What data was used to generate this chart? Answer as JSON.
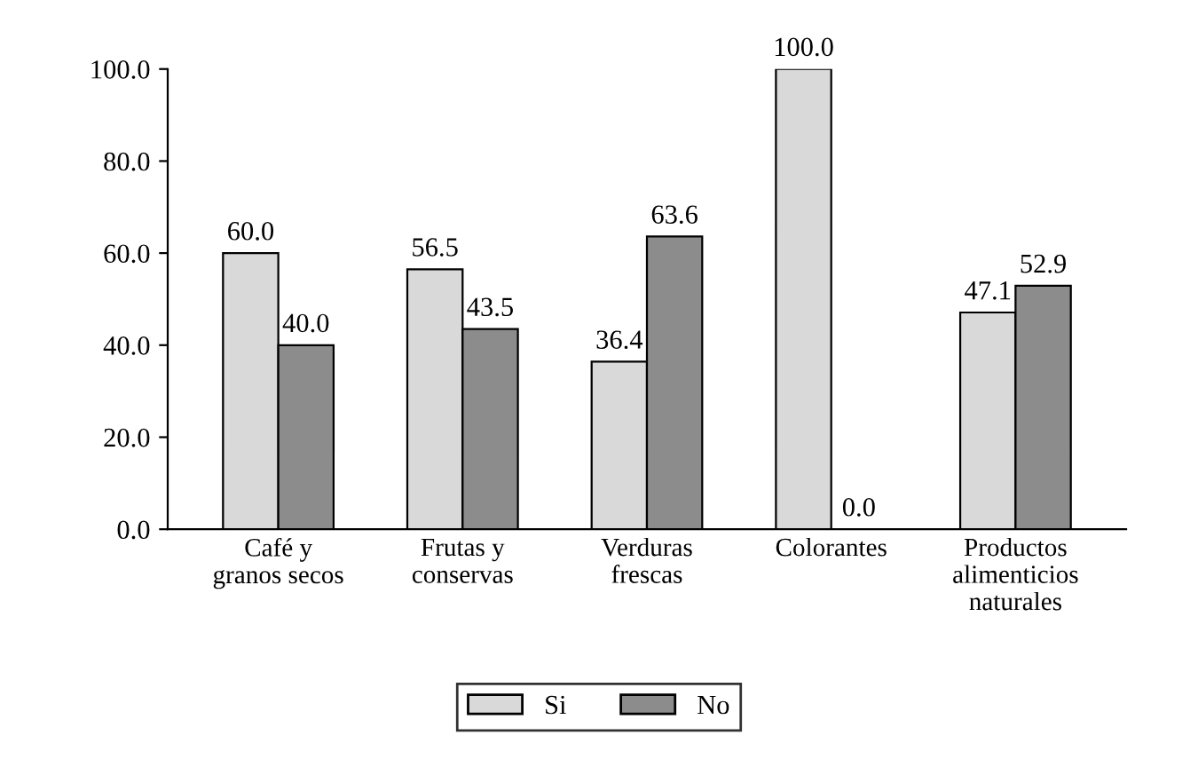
{
  "chart_data": {
    "type": "bar",
    "categories": [
      "Café y\ngranos secos",
      "Frutas y\nconservas",
      "Verduras\nfrescas",
      "Colorantes",
      "Productos\nalimenticios\nnaturales"
    ],
    "series": [
      {
        "name": "Si",
        "color": "#d9d9d9",
        "values": [
          60.0,
          56.5,
          36.4,
          100.0,
          47.1
        ],
        "value_labels": [
          "60.0",
          "56.5",
          "36.4",
          "100.0",
          "47.1"
        ]
      },
      {
        "name": "No",
        "color": "#8c8c8c",
        "values": [
          40.0,
          43.5,
          63.6,
          0.0,
          52.9
        ],
        "value_labels": [
          "40.0",
          "43.5",
          "63.6",
          "0.0",
          "52.9"
        ]
      }
    ],
    "ylim": [
      0,
      100
    ],
    "yticks": [
      {
        "value": 0,
        "label": "0.0"
      },
      {
        "value": 20,
        "label": "20.0"
      },
      {
        "value": 40,
        "label": "40.0"
      },
      {
        "value": 60,
        "label": "60.0"
      },
      {
        "value": 80,
        "label": "80.0"
      },
      {
        "value": 100,
        "label": "100.0"
      }
    ],
    "grid": false,
    "legend": "bottom"
  }
}
